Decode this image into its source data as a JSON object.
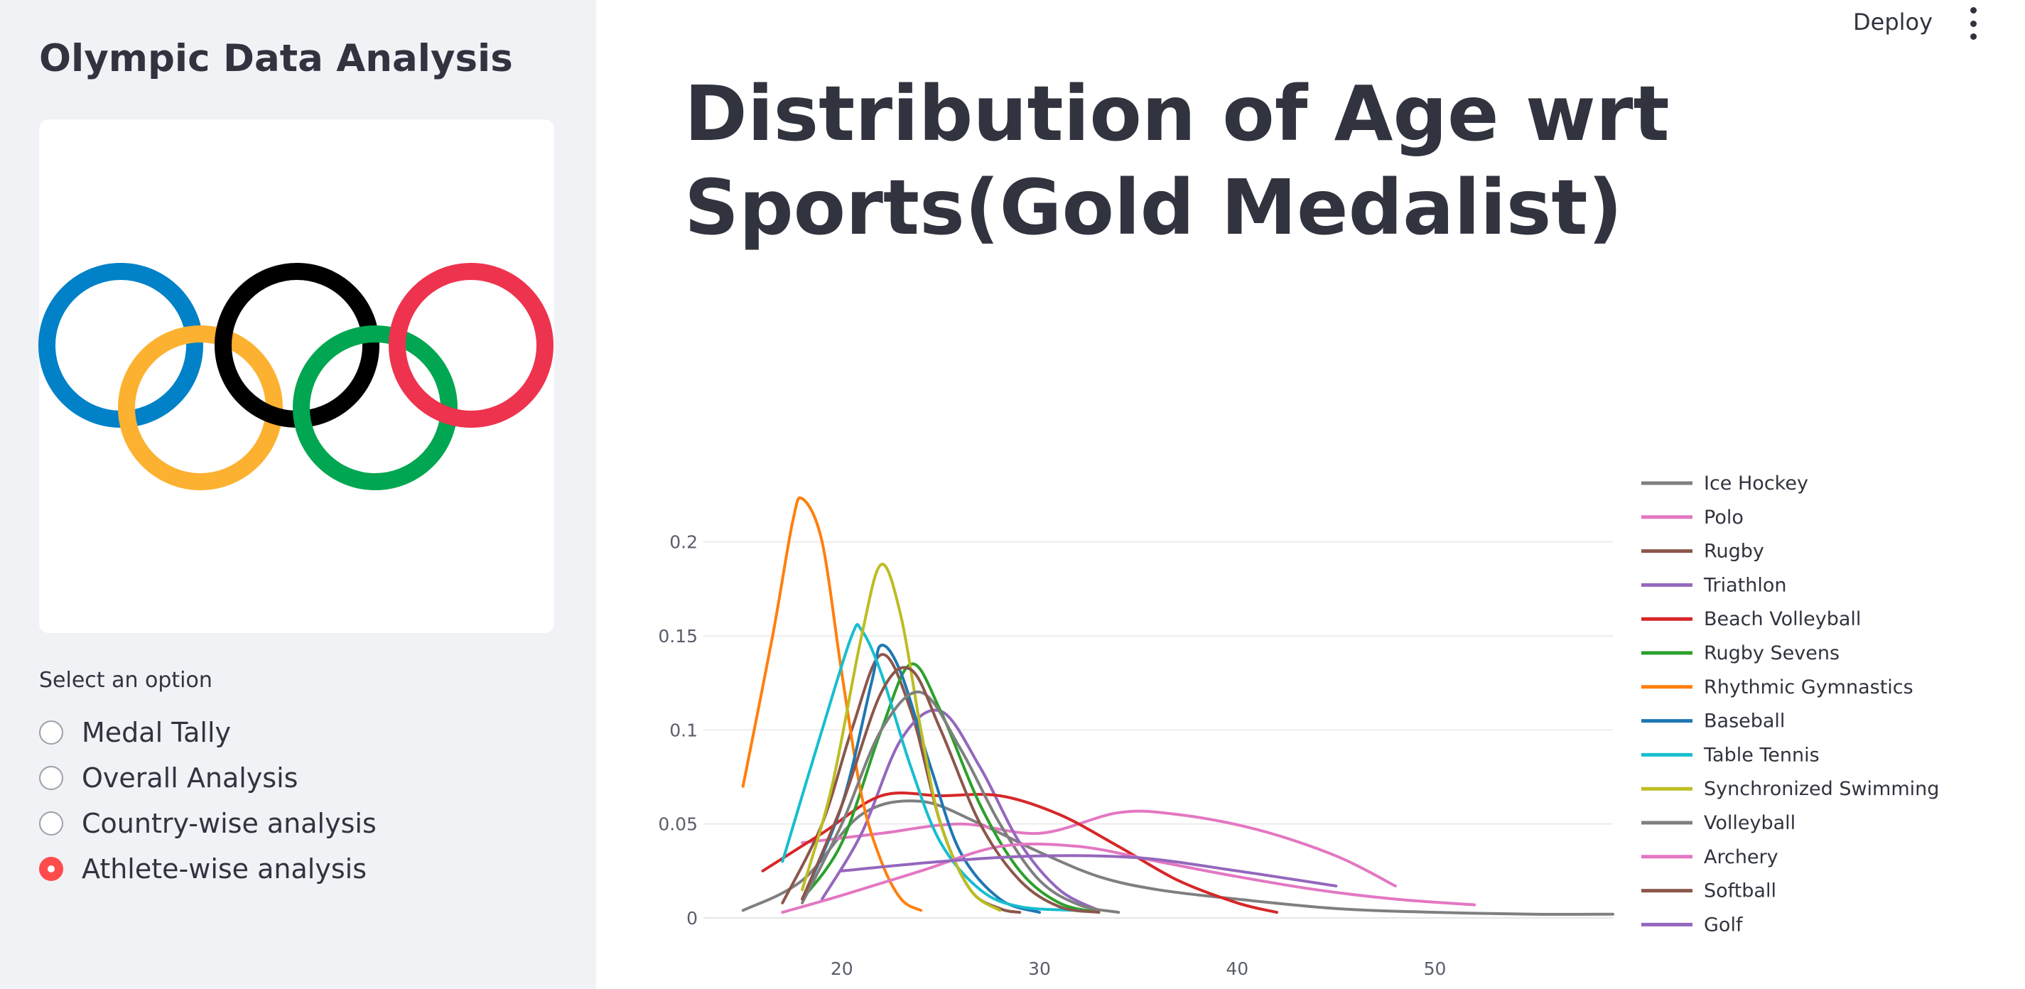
{
  "sidebar": {
    "title": "Olympic Data Analysis",
    "logo": {
      "ring_colors": [
        "#0081c8",
        "#fcb131",
        "#000000",
        "#00a651",
        "#ee334e"
      ]
    },
    "select_label": "Select an option",
    "options": [
      {
        "label": "Medal Tally",
        "selected": false
      },
      {
        "label": "Overall Analysis",
        "selected": false
      },
      {
        "label": "Country-wise analysis",
        "selected": false
      },
      {
        "label": "Athlete-wise analysis",
        "selected": true
      }
    ]
  },
  "header": {
    "deploy_label": "Deploy",
    "menu_icon": "kebab-menu-icon"
  },
  "main": {
    "title": "Distribution of Age wrt Sports(Gold Medalist)"
  },
  "chart_data": {
    "type": "line",
    "title": "",
    "xlabel": "",
    "ylabel": "",
    "xlim": [
      13,
      59
    ],
    "ylim": [
      0,
      0.235
    ],
    "x_ticks": [
      20,
      30,
      40,
      50
    ],
    "y_ticks": [
      0,
      0.05,
      0.1,
      0.15,
      0.2
    ],
    "y_tick_labels": [
      "0",
      "0.05",
      "0.1",
      "0.15",
      "0.2"
    ],
    "grid": true,
    "legend_position": "right",
    "series": [
      {
        "name": "Ice Hockey",
        "color": "#7f7f7f",
        "points": [
          [
            15,
            0.004
          ],
          [
            18,
            0.02
          ],
          [
            21,
            0.055
          ],
          [
            24,
            0.062
          ],
          [
            27,
            0.05
          ],
          [
            30,
            0.035
          ],
          [
            33,
            0.022
          ],
          [
            36,
            0.015
          ],
          [
            40,
            0.01
          ],
          [
            45,
            0.005
          ],
          [
            50,
            0.003
          ],
          [
            55,
            0.002
          ],
          [
            59,
            0.002
          ]
        ]
      },
      {
        "name": "Polo",
        "color": "#e377c2",
        "points": [
          [
            18,
            0.04
          ],
          [
            22,
            0.045
          ],
          [
            26,
            0.05
          ],
          [
            30,
            0.045
          ],
          [
            34,
            0.056
          ],
          [
            37,
            0.055
          ],
          [
            41,
            0.047
          ],
          [
            45,
            0.033
          ],
          [
            48,
            0.017
          ]
        ]
      },
      {
        "name": "Rugby",
        "color": "#8c564b",
        "points": [
          [
            17,
            0.008
          ],
          [
            19,
            0.05
          ],
          [
            20.5,
            0.1
          ],
          [
            22,
            0.14
          ],
          [
            23.5,
            0.11
          ],
          [
            25,
            0.05
          ],
          [
            26.5,
            0.015
          ],
          [
            28,
            0.005
          ],
          [
            29,
            0.003
          ]
        ]
      },
      {
        "name": "Triathlon",
        "color": "#9467bd",
        "points": [
          [
            19,
            0.01
          ],
          [
            21,
            0.045
          ],
          [
            23,
            0.095
          ],
          [
            25,
            0.11
          ],
          [
            27,
            0.08
          ],
          [
            29,
            0.04
          ],
          [
            31,
            0.015
          ],
          [
            33,
            0.004
          ]
        ]
      },
      {
        "name": "Beach Volleyball",
        "color": "#d62728",
        "points": [
          [
            16,
            0.025
          ],
          [
            19,
            0.045
          ],
          [
            22,
            0.065
          ],
          [
            25,
            0.065
          ],
          [
            28,
            0.065
          ],
          [
            31,
            0.055
          ],
          [
            34,
            0.038
          ],
          [
            37,
            0.02
          ],
          [
            40,
            0.008
          ],
          [
            42,
            0.003
          ]
        ]
      },
      {
        "name": "Rugby Sevens",
        "color": "#2ca02c",
        "points": [
          [
            18,
            0.01
          ],
          [
            20,
            0.04
          ],
          [
            22,
            0.1
          ],
          [
            23.5,
            0.135
          ],
          [
            25,
            0.11
          ],
          [
            27,
            0.06
          ],
          [
            29,
            0.025
          ],
          [
            31,
            0.008
          ],
          [
            33,
            0.003
          ]
        ]
      },
      {
        "name": "Rhythmic Gymnastics",
        "color": "#ff7f0e",
        "points": [
          [
            15,
            0.07
          ],
          [
            16.5,
            0.15
          ],
          [
            17.5,
            0.21
          ],
          [
            18,
            0.223
          ],
          [
            19,
            0.2
          ],
          [
            20,
            0.13
          ],
          [
            21,
            0.065
          ],
          [
            22,
            0.03
          ],
          [
            23,
            0.01
          ],
          [
            24,
            0.004
          ]
        ]
      },
      {
        "name": "Baseball",
        "color": "#1f77b4",
        "points": [
          [
            18,
            0.01
          ],
          [
            20,
            0.06
          ],
          [
            21.5,
            0.125
          ],
          [
            22,
            0.145
          ],
          [
            23,
            0.13
          ],
          [
            24.5,
            0.08
          ],
          [
            26,
            0.035
          ],
          [
            28,
            0.01
          ],
          [
            30,
            0.003
          ]
        ]
      },
      {
        "name": "Table Tennis",
        "color": "#17becf",
        "points": [
          [
            17,
            0.03
          ],
          [
            19,
            0.1
          ],
          [
            20.5,
            0.15
          ],
          [
            21,
            0.153
          ],
          [
            22,
            0.13
          ],
          [
            23.5,
            0.08
          ],
          [
            25,
            0.04
          ],
          [
            27,
            0.015
          ],
          [
            29,
            0.006
          ],
          [
            32,
            0.004
          ]
        ]
      },
      {
        "name": "Synchronized Swimming",
        "color": "#bcbd22",
        "points": [
          [
            18,
            0.015
          ],
          [
            19.5,
            0.07
          ],
          [
            21,
            0.15
          ],
          [
            22,
            0.188
          ],
          [
            23,
            0.16
          ],
          [
            24,
            0.1
          ],
          [
            25,
            0.05
          ],
          [
            26.5,
            0.015
          ],
          [
            28,
            0.004
          ]
        ]
      },
      {
        "name": "Volleyball",
        "color": "#7f7f7f",
        "points": [
          [
            18,
            0.008
          ],
          [
            20,
            0.05
          ],
          [
            22,
            0.1
          ],
          [
            24,
            0.12
          ],
          [
            26,
            0.09
          ],
          [
            28,
            0.05
          ],
          [
            30,
            0.02
          ],
          [
            32,
            0.007
          ],
          [
            34,
            0.003
          ]
        ]
      },
      {
        "name": "Archery",
        "color": "#e377c2",
        "points": [
          [
            17,
            0.003
          ],
          [
            20,
            0.012
          ],
          [
            24,
            0.025
          ],
          [
            28,
            0.038
          ],
          [
            32,
            0.038
          ],
          [
            36,
            0.03
          ],
          [
            40,
            0.022
          ],
          [
            44,
            0.015
          ],
          [
            48,
            0.01
          ],
          [
            52,
            0.007
          ]
        ]
      },
      {
        "name": "Softball",
        "color": "#8c564b",
        "points": [
          [
            18,
            0.01
          ],
          [
            20,
            0.06
          ],
          [
            22,
            0.12
          ],
          [
            23.5,
            0.132
          ],
          [
            25,
            0.1
          ],
          [
            27,
            0.05
          ],
          [
            29,
            0.02
          ],
          [
            31,
            0.006
          ],
          [
            33,
            0.003
          ]
        ]
      },
      {
        "name": "Golf",
        "color": "#9467bd",
        "points": [
          [
            20,
            0.025
          ],
          [
            25,
            0.03
          ],
          [
            30,
            0.033
          ],
          [
            35,
            0.032
          ],
          [
            40,
            0.025
          ],
          [
            45,
            0.017
          ]
        ]
      }
    ]
  }
}
